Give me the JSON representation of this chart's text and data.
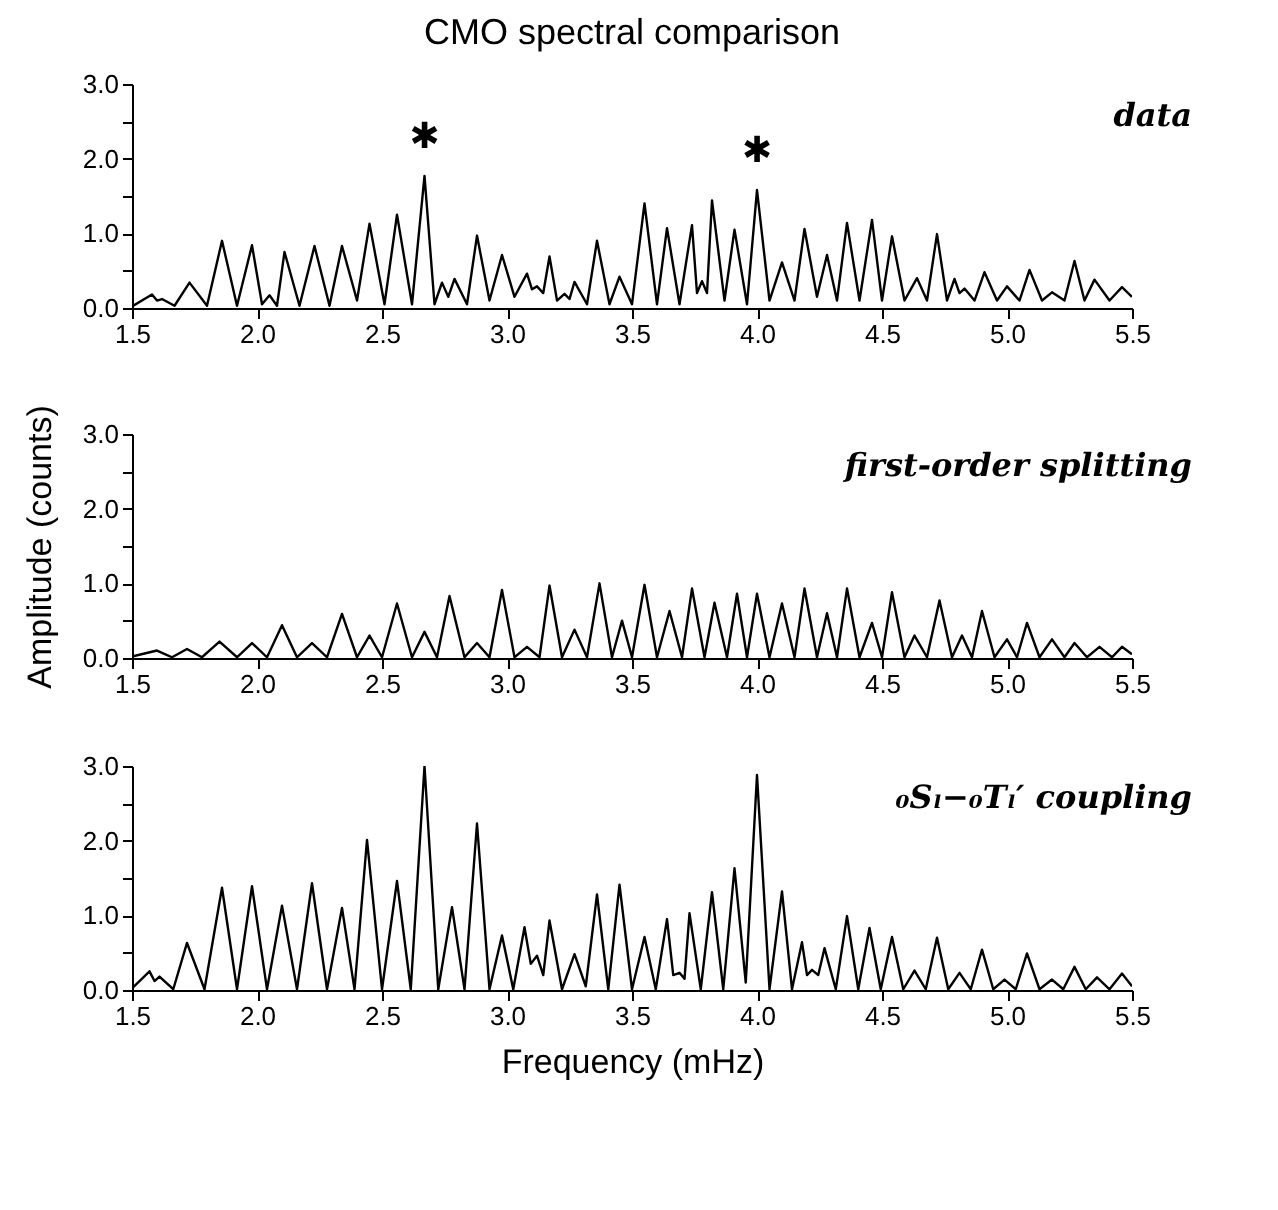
{
  "chart_data": [
    {
      "type": "line",
      "title": "CMO spectral comparison",
      "color": "#000000",
      "xlim": [
        1.5,
        5.5
      ],
      "ylim": [
        0,
        3
      ],
      "xticks": [
        1.5,
        {
          "value": 2,
          "label": "2.0"
        },
        2.5,
        {
          "value": 3,
          "label": "3.0"
        },
        3.5,
        {
          "value": 4,
          "label": "4.0"
        },
        4.5,
        {
          "value": 5,
          "label": "5.0"
        },
        5.5
      ],
      "yticks": [
        {
          "value": 0,
          "label": "0.0"
        },
        {
          "value": 0.5,
          "label": null
        },
        {
          "value": 1,
          "label": "1.0"
        },
        {
          "value": 1.5,
          "label": null
        },
        {
          "value": 2,
          "label": "2.0"
        },
        {
          "value": 2.5,
          "label": null
        },
        {
          "value": 3,
          "label": "3.0"
        }
      ],
      "annotations": [
        "data",
        {
          "text": "✱",
          "x": 2.67,
          "y": 1.77
        },
        {
          "text": "✱",
          "x": 4.0,
          "y": 1.58
        }
      ],
      "x": [
        1.5,
        1.58,
        1.6,
        1.62,
        1.67,
        1.73,
        1.8,
        1.86,
        1.92,
        1.98,
        2.02,
        2.05,
        2.08,
        2.11,
        2.17,
        2.23,
        2.29,
        2.34,
        2.4,
        2.45,
        2.51,
        2.56,
        2.62,
        2.67,
        2.71,
        2.74,
        2.765,
        2.79,
        2.84,
        2.88,
        2.93,
        2.98,
        3.03,
        3.08,
        3.1,
        3.12,
        3.145,
        3.17,
        3.2,
        3.23,
        3.25,
        3.27,
        3.32,
        3.36,
        3.41,
        3.45,
        3.5,
        3.55,
        3.6,
        3.64,
        3.69,
        3.74,
        3.76,
        3.78,
        3.8,
        3.82,
        3.87,
        3.91,
        3.96,
        4.0,
        4.05,
        4.1,
        4.15,
        4.19,
        4.24,
        4.28,
        4.32,
        4.36,
        4.41,
        4.46,
        4.5,
        4.54,
        4.59,
        4.64,
        4.68,
        4.72,
        4.76,
        4.79,
        4.81,
        4.83,
        4.87,
        4.91,
        4.96,
        5.0,
        5.05,
        5.09,
        5.14,
        5.18,
        5.23,
        5.27,
        5.31,
        5.35,
        5.41,
        5.46,
        5.5
      ],
      "values": [
        0.02,
        0.18,
        0.1,
        0.12,
        0.03,
        0.34,
        0.03,
        0.9,
        0.03,
        0.84,
        0.05,
        0.17,
        0.03,
        0.75,
        0.03,
        0.83,
        0.03,
        0.83,
        0.1,
        1.13,
        0.05,
        1.25,
        0.05,
        1.77,
        0.05,
        0.34,
        0.15,
        0.39,
        0.05,
        0.97,
        0.1,
        0.71,
        0.15,
        0.46,
        0.25,
        0.29,
        0.2,
        0.69,
        0.1,
        0.19,
        0.12,
        0.35,
        0.05,
        0.9,
        0.05,
        0.42,
        0.05,
        1.4,
        0.05,
        1.07,
        0.05,
        1.11,
        0.2,
        0.36,
        0.2,
        1.44,
        0.1,
        1.05,
        0.05,
        1.58,
        0.1,
        0.61,
        0.1,
        1.06,
        0.15,
        0.71,
        0.1,
        1.14,
        0.1,
        1.18,
        0.1,
        0.96,
        0.1,
        0.4,
        0.1,
        0.99,
        0.1,
        0.39,
        0.2,
        0.26,
        0.1,
        0.48,
        0.1,
        0.29,
        0.1,
        0.51,
        0.1,
        0.21,
        0.1,
        0.63,
        0.1,
        0.38,
        0.1,
        0.28,
        0.15
      ]
    },
    {
      "type": "line",
      "ylabel": "Amplitude (counts)",
      "color": "#000000",
      "xlim": [
        1.5,
        5.5
      ],
      "ylim": [
        0,
        3
      ],
      "xticks": [
        1.5,
        {
          "value": 2,
          "label": "2.0"
        },
        2.5,
        {
          "value": 3,
          "label": "3.0"
        },
        3.5,
        {
          "value": 4,
          "label": "4.0"
        },
        4.5,
        {
          "value": 5,
          "label": "5.0"
        },
        5.5
      ],
      "yticks": [
        {
          "value": 0,
          "label": "0.0"
        },
        {
          "value": 0.5,
          "label": null
        },
        {
          "value": 1,
          "label": "1.0"
        },
        {
          "value": 1.5,
          "label": null
        },
        {
          "value": 2,
          "label": "2.0"
        },
        {
          "value": 2.5,
          "label": null
        },
        {
          "value": 3,
          "label": "3.0"
        }
      ],
      "annotations": [
        "first-order splitting"
      ],
      "x": [
        1.5,
        1.6,
        1.66,
        1.72,
        1.78,
        1.85,
        1.92,
        1.98,
        2.04,
        2.1,
        2.16,
        2.22,
        2.28,
        2.34,
        2.4,
        2.45,
        2.5,
        2.56,
        2.62,
        2.67,
        2.72,
        2.77,
        2.83,
        2.88,
        2.93,
        2.98,
        3.03,
        3.08,
        3.13,
        3.17,
        3.22,
        3.27,
        3.32,
        3.37,
        3.42,
        3.46,
        3.5,
        3.55,
        3.6,
        3.65,
        3.7,
        3.74,
        3.79,
        3.83,
        3.88,
        3.92,
        3.96,
        4.0,
        4.05,
        4.1,
        4.15,
        4.19,
        4.24,
        4.28,
        4.32,
        4.36,
        4.41,
        4.46,
        4.5,
        4.54,
        4.59,
        4.63,
        4.68,
        4.73,
        4.78,
        4.82,
        4.86,
        4.9,
        4.95,
        5.0,
        5.04,
        5.08,
        5.13,
        5.18,
        5.23,
        5.27,
        5.32,
        5.37,
        5.42,
        5.46,
        5.5
      ],
      "values": [
        0.02,
        0.1,
        0.01,
        0.12,
        0.01,
        0.22,
        0.01,
        0.2,
        0.01,
        0.44,
        0.01,
        0.2,
        0.01,
        0.59,
        0.01,
        0.3,
        0.01,
        0.73,
        0.01,
        0.35,
        0.01,
        0.83,
        0.01,
        0.2,
        0.01,
        0.91,
        0.01,
        0.15,
        0.01,
        0.97,
        0.01,
        0.38,
        0.01,
        1.0,
        0.01,
        0.5,
        0.01,
        0.98,
        0.01,
        0.63,
        0.01,
        0.93,
        0.01,
        0.74,
        0.01,
        0.86,
        0.01,
        0.86,
        0.01,
        0.73,
        0.01,
        0.93,
        0.01,
        0.6,
        0.01,
        0.93,
        0.01,
        0.47,
        0.01,
        0.88,
        0.01,
        0.3,
        0.01,
        0.77,
        0.01,
        0.3,
        0.01,
        0.63,
        0.01,
        0.25,
        0.01,
        0.47,
        0.01,
        0.25,
        0.01,
        0.2,
        0.01,
        0.15,
        0.01,
        0.15,
        0.05
      ]
    },
    {
      "type": "line",
      "xlabel": "Frequency (mHz)",
      "color": "#000000",
      "xlim": [
        1.5,
        5.5
      ],
      "ylim": [
        0,
        3
      ],
      "xticks": [
        1.5,
        {
          "value": 2,
          "label": "2.0"
        },
        2.5,
        {
          "value": 3,
          "label": "3.0"
        },
        3.5,
        {
          "value": 4,
          "label": "4.0"
        },
        4.5,
        {
          "value": 5,
          "label": "5.0"
        },
        5.5
      ],
      "yticks": [
        {
          "value": 0,
          "label": "0.0"
        },
        {
          "value": 0.5,
          "label": null
        },
        {
          "value": 1,
          "label": "1.0"
        },
        {
          "value": 1.5,
          "label": null
        },
        {
          "value": 2,
          "label": "2.0"
        },
        {
          "value": 2.5,
          "label": null
        },
        {
          "value": 3,
          "label": "3.0"
        }
      ],
      "annotations": [
        "₀Sₗ−₀Tₗ′ coupling"
      ],
      "x": [
        1.5,
        1.57,
        1.59,
        1.61,
        1.665,
        1.72,
        1.79,
        1.86,
        1.92,
        1.98,
        2.04,
        2.1,
        2.16,
        2.22,
        2.28,
        2.34,
        2.39,
        2.44,
        2.5,
        2.56,
        2.615,
        2.67,
        2.725,
        2.78,
        2.83,
        2.88,
        2.93,
        2.98,
        3.025,
        3.07,
        3.095,
        3.12,
        3.145,
        3.17,
        3.22,
        3.27,
        3.315,
        3.36,
        3.405,
        3.45,
        3.5,
        3.55,
        3.595,
        3.64,
        3.665,
        3.69,
        3.71,
        3.73,
        3.775,
        3.82,
        3.865,
        3.91,
        3.955,
        4.0,
        4.05,
        4.1,
        4.14,
        4.18,
        4.2,
        4.22,
        4.245,
        4.27,
        4.315,
        4.36,
        4.405,
        4.45,
        4.495,
        4.54,
        4.585,
        4.63,
        4.675,
        4.72,
        4.765,
        4.81,
        4.855,
        4.9,
        4.945,
        4.99,
        5.035,
        5.08,
        5.13,
        5.18,
        5.225,
        5.27,
        5.315,
        5.36,
        5.41,
        5.46,
        5.5
      ],
      "values": [
        0.02,
        0.25,
        0.12,
        0.18,
        0.01,
        0.63,
        0.01,
        1.37,
        0.01,
        1.39,
        0.01,
        1.13,
        0.01,
        1.43,
        0.01,
        1.1,
        0.01,
        2.01,
        0.01,
        1.46,
        0.01,
        3.0,
        0.01,
        1.11,
        0.01,
        2.23,
        0.01,
        0.73,
        0.01,
        0.84,
        0.35,
        0.46,
        0.2,
        0.93,
        0.01,
        0.48,
        0.05,
        1.28,
        0.01,
        1.41,
        0.01,
        0.71,
        0.01,
        0.95,
        0.2,
        0.23,
        0.15,
        1.03,
        0.01,
        1.31,
        0.01,
        1.63,
        0.1,
        2.88,
        0.01,
        1.32,
        0.01,
        0.64,
        0.2,
        0.27,
        0.2,
        0.56,
        0.01,
        0.99,
        0.01,
        0.83,
        0.01,
        0.71,
        0.01,
        0.26,
        0.01,
        0.7,
        0.01,
        0.23,
        0.01,
        0.54,
        0.01,
        0.14,
        0.01,
        0.49,
        0.01,
        0.14,
        0.01,
        0.31,
        0.01,
        0.17,
        0.01,
        0.22,
        0.05
      ]
    }
  ]
}
